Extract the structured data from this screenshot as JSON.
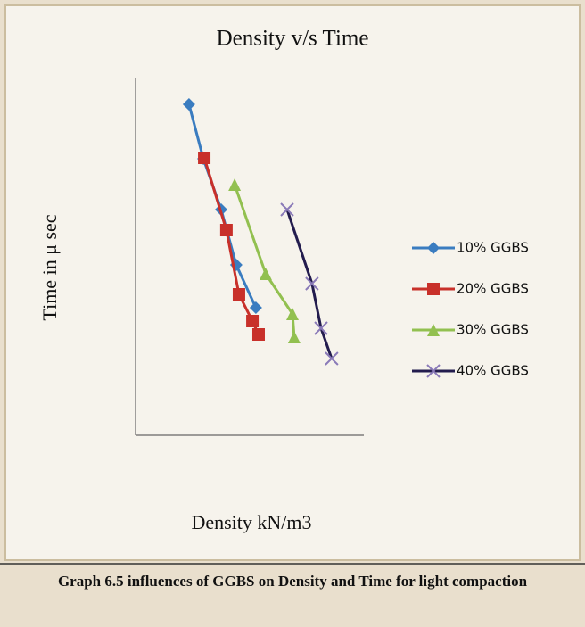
{
  "chart_data": {
    "type": "line",
    "title": "Density v/s Time",
    "x_label": "Density kN/m3",
    "y_label": "Time in μ sec",
    "caption": "Graph 6.5 influences of GGBS on Density and Time for light compaction",
    "xlim": [
      0,
      100
    ],
    "ylim": [
      0,
      100
    ],
    "legend": "right",
    "series": [
      {
        "name": "10% GGBS",
        "color": "#3a7cc0",
        "marker": "diamond",
        "x": [
          23.4,
          29.7,
          37.5,
          44.1,
          52.7
        ],
        "values": [
          92.75,
          77.5,
          63.25,
          47.75,
          35.75
        ]
      },
      {
        "name": "20% GGBS",
        "color": "#c8302a",
        "marker": "square",
        "x": [
          30.1,
          39.8,
          45.3,
          51.2,
          53.9
        ],
        "values": [
          77.75,
          57.5,
          39.5,
          32,
          28.25
        ]
      },
      {
        "name": "30% GGBS",
        "color": "#92c050",
        "marker": "triangle",
        "x": [
          43.4,
          57.0,
          68.75,
          69.5
        ],
        "values": [
          70.25,
          45.25,
          34,
          27.5
        ]
      },
      {
        "name": "40% GGBS",
        "color": "#231c4e",
        "marker": "x",
        "x": [
          66.4,
          77.3,
          81.25,
          85.9
        ],
        "values": [
          63.25,
          42.5,
          30,
          21.5
        ]
      }
    ]
  }
}
